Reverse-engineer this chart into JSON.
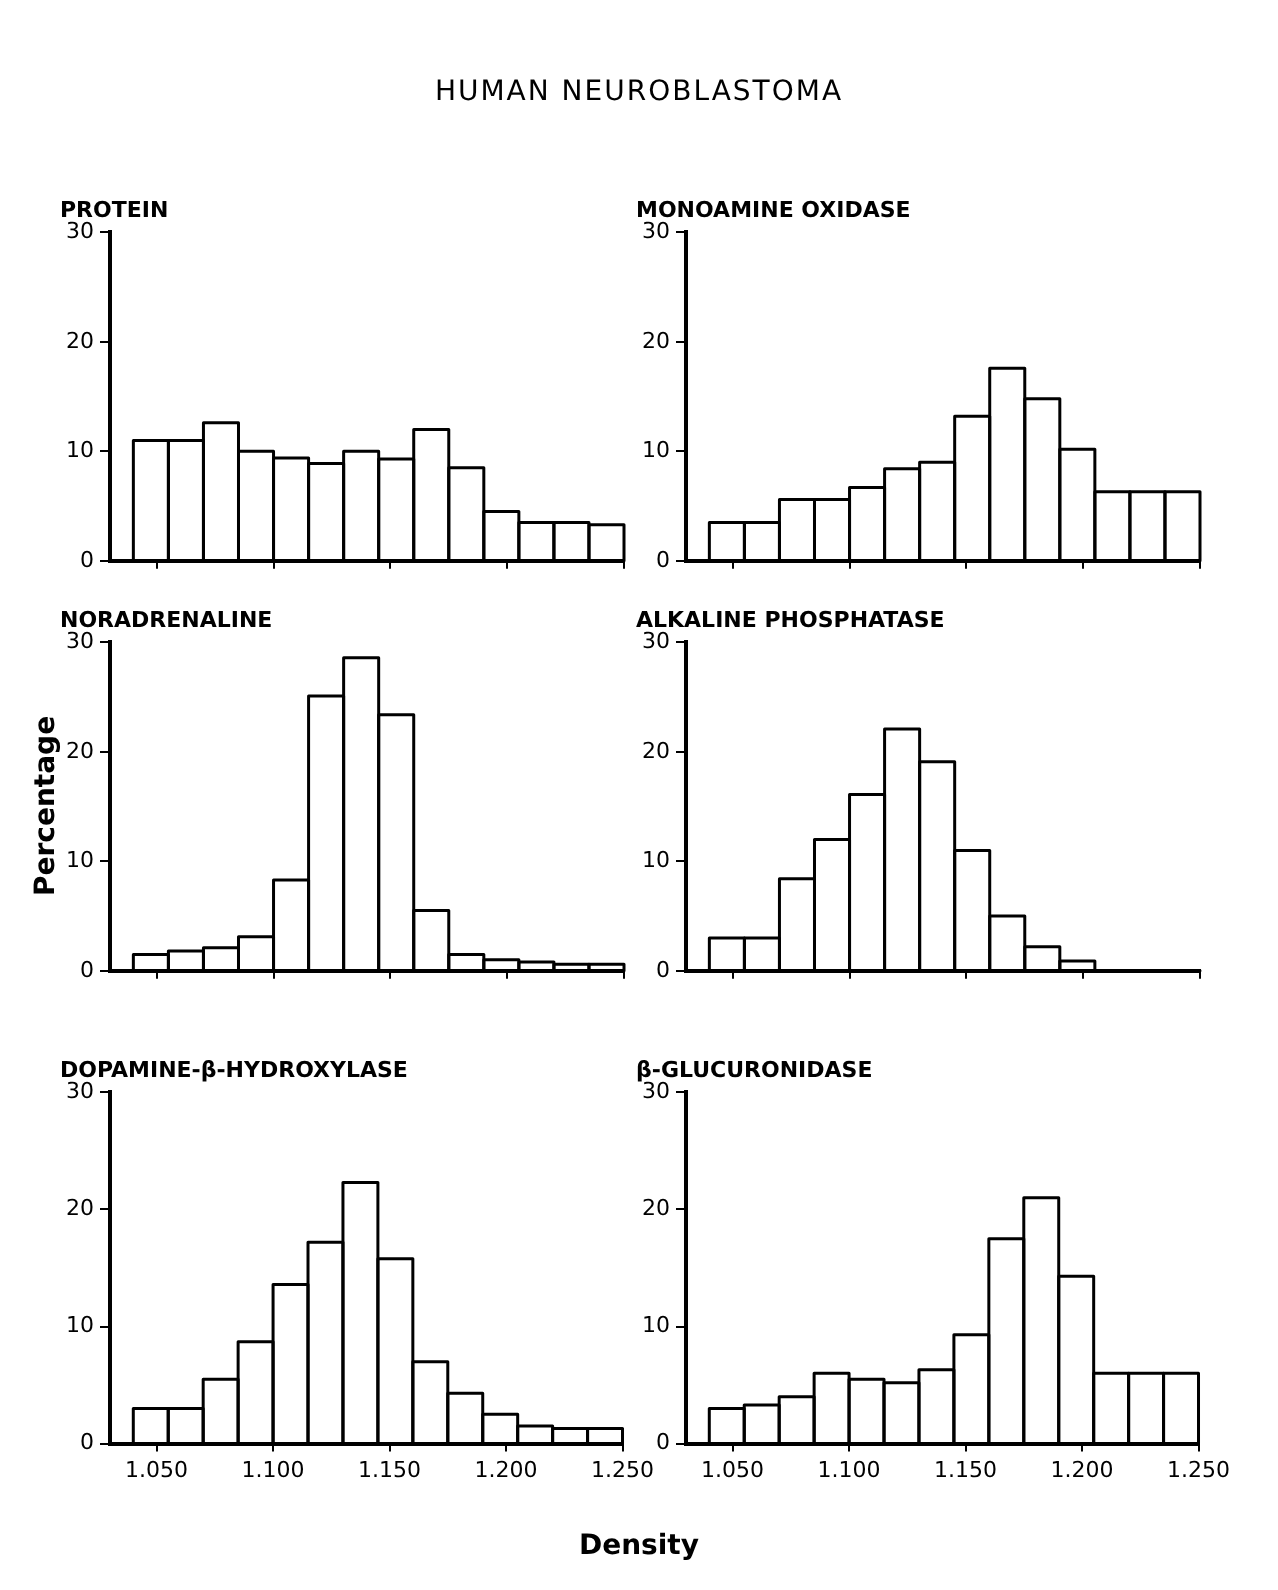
{
  "chart_data": [
    {
      "type": "histogram",
      "title": "PROTEIN",
      "annotations": [
        "HUMAN NEUROBLASTOMA"
      ],
      "bins": [
        1.04,
        1.055,
        1.07,
        1.085,
        1.1,
        1.115,
        1.13,
        1.145,
        1.16,
        1.175,
        1.19,
        1.205,
        1.22,
        1.235,
        1.25
      ],
      "values": [
        11,
        11,
        12.6,
        10,
        9.4,
        8.9,
        10,
        9.3,
        12,
        8.5,
        4.5,
        3.5,
        3.5,
        3.3
      ],
      "color": "#000000",
      "xlim": [
        1.03,
        1.25
      ],
      "ylim": [
        0,
        30
      ],
      "yticks": [
        0,
        10,
        20,
        30
      ],
      "xticks": [
        {
          "value": 1.05,
          "label": null
        },
        {
          "value": 1.1,
          "label": null
        },
        {
          "value": 1.15,
          "label": null
        },
        {
          "value": 1.2,
          "label": null
        },
        {
          "value": 1.25,
          "label": null
        }
      ],
      "tick_labels": "y"
    },
    {
      "type": "histogram",
      "title": "MONOAMINE OXIDASE",
      "bins": [
        1.04,
        1.055,
        1.07,
        1.085,
        1.1,
        1.115,
        1.13,
        1.145,
        1.16,
        1.175,
        1.19,
        1.205,
        1.22,
        1.235,
        1.25
      ],
      "values": [
        3.5,
        3.5,
        5.6,
        5.6,
        6.7,
        8.4,
        9,
        13.2,
        17.6,
        14.8,
        10.2,
        6.3,
        6.3,
        6.3
      ],
      "color": "#000000",
      "xlim": [
        1.03,
        1.25
      ],
      "ylim": [
        0,
        30
      ],
      "yticks": [
        0,
        10,
        20,
        30
      ],
      "xticks": [
        {
          "value": 1.05,
          "label": null
        },
        {
          "value": 1.1,
          "label": null
        },
        {
          "value": 1.15,
          "label": null
        },
        {
          "value": 1.2,
          "label": null
        },
        {
          "value": 1.25,
          "label": null
        }
      ],
      "tick_labels": "y"
    },
    {
      "type": "histogram",
      "title": "NORADRENALINE",
      "ylabel": "Percentage",
      "bins": [
        1.04,
        1.055,
        1.07,
        1.085,
        1.1,
        1.115,
        1.13,
        1.145,
        1.16,
        1.175,
        1.19,
        1.205,
        1.22,
        1.235,
        1.25
      ],
      "values": [
        1.5,
        1.8,
        2.1,
        3.1,
        8.3,
        25.1,
        28.6,
        23.4,
        5.5,
        1.5,
        1,
        0.8,
        0.6,
        0.6
      ],
      "color": "#000000",
      "xlim": [
        1.03,
        1.25
      ],
      "ylim": [
        0,
        30
      ],
      "yticks": [
        0,
        10,
        20,
        30
      ],
      "xticks": [
        {
          "value": 1.05,
          "label": null
        },
        {
          "value": 1.1,
          "label": null
        },
        {
          "value": 1.15,
          "label": null
        },
        {
          "value": 1.2,
          "label": null
        },
        {
          "value": 1.25,
          "label": null
        }
      ],
      "tick_labels": "y"
    },
    {
      "type": "histogram",
      "title": "ALKALINE PHOSPHATASE",
      "bins": [
        1.04,
        1.055,
        1.07,
        1.085,
        1.1,
        1.115,
        1.13,
        1.145,
        1.16,
        1.175,
        1.19,
        1.205,
        1.22,
        1.235,
        1.25
      ],
      "values": [
        3,
        3,
        8.4,
        12,
        16.1,
        22.1,
        19.1,
        11,
        5,
        2.2,
        0.9,
        0,
        0,
        0
      ],
      "color": "#000000",
      "xlim": [
        1.03,
        1.25
      ],
      "ylim": [
        0,
        30
      ],
      "yticks": [
        0,
        10,
        20,
        30
      ],
      "xticks": [
        {
          "value": 1.05,
          "label": null
        },
        {
          "value": 1.1,
          "label": null
        },
        {
          "value": 1.15,
          "label": null
        },
        {
          "value": 1.2,
          "label": null
        },
        {
          "value": 1.25,
          "label": null
        }
      ],
      "tick_labels": "y"
    },
    {
      "type": "histogram",
      "title": "DOPAMINE-β-HYDROXYLASE",
      "xlabel": "Density",
      "bins": [
        1.04,
        1.055,
        1.07,
        1.085,
        1.1,
        1.115,
        1.13,
        1.145,
        1.16,
        1.175,
        1.19,
        1.205,
        1.22,
        1.235,
        1.25
      ],
      "values": [
        3,
        3,
        5.5,
        8.7,
        13.6,
        17.2,
        22.3,
        15.8,
        7,
        4.3,
        2.5,
        1.5,
        1.3,
        1.3
      ],
      "color": "#000000",
      "xlim": [
        1.03,
        1.25
      ],
      "ylim": [
        0,
        30
      ],
      "yticks": [
        0,
        10,
        20,
        30
      ],
      "xticks": [
        {
          "value": 1.05,
          "label": "1.050"
        },
        {
          "value": 1.1,
          "label": "1.100"
        },
        {
          "value": 1.15,
          "label": "1.150"
        },
        {
          "value": 1.2,
          "label": "1.200"
        },
        {
          "value": 1.25,
          "label": "1.250"
        }
      ]
    },
    {
      "type": "histogram",
      "title": "β-GLUCURONIDASE",
      "bins": [
        1.04,
        1.055,
        1.07,
        1.085,
        1.1,
        1.115,
        1.13,
        1.145,
        1.16,
        1.175,
        1.19,
        1.205,
        1.22,
        1.235,
        1.25
      ],
      "values": [
        3,
        3.3,
        4,
        6,
        5.5,
        5.2,
        6.3,
        9.3,
        17.5,
        21,
        14.3,
        6,
        6,
        6
      ],
      "color": "#000000",
      "xlim": [
        1.03,
        1.25
      ],
      "ylim": [
        0,
        30
      ],
      "yticks": [
        0,
        10,
        20,
        30
      ],
      "xticks": [
        {
          "value": 1.05,
          "label": "1.050"
        },
        {
          "value": 1.1,
          "label": "1.100"
        },
        {
          "value": 1.15,
          "label": "1.150"
        },
        {
          "value": 1.2,
          "label": "1.200"
        },
        {
          "value": 1.25,
          "label": "1.250"
        }
      ]
    }
  ]
}
